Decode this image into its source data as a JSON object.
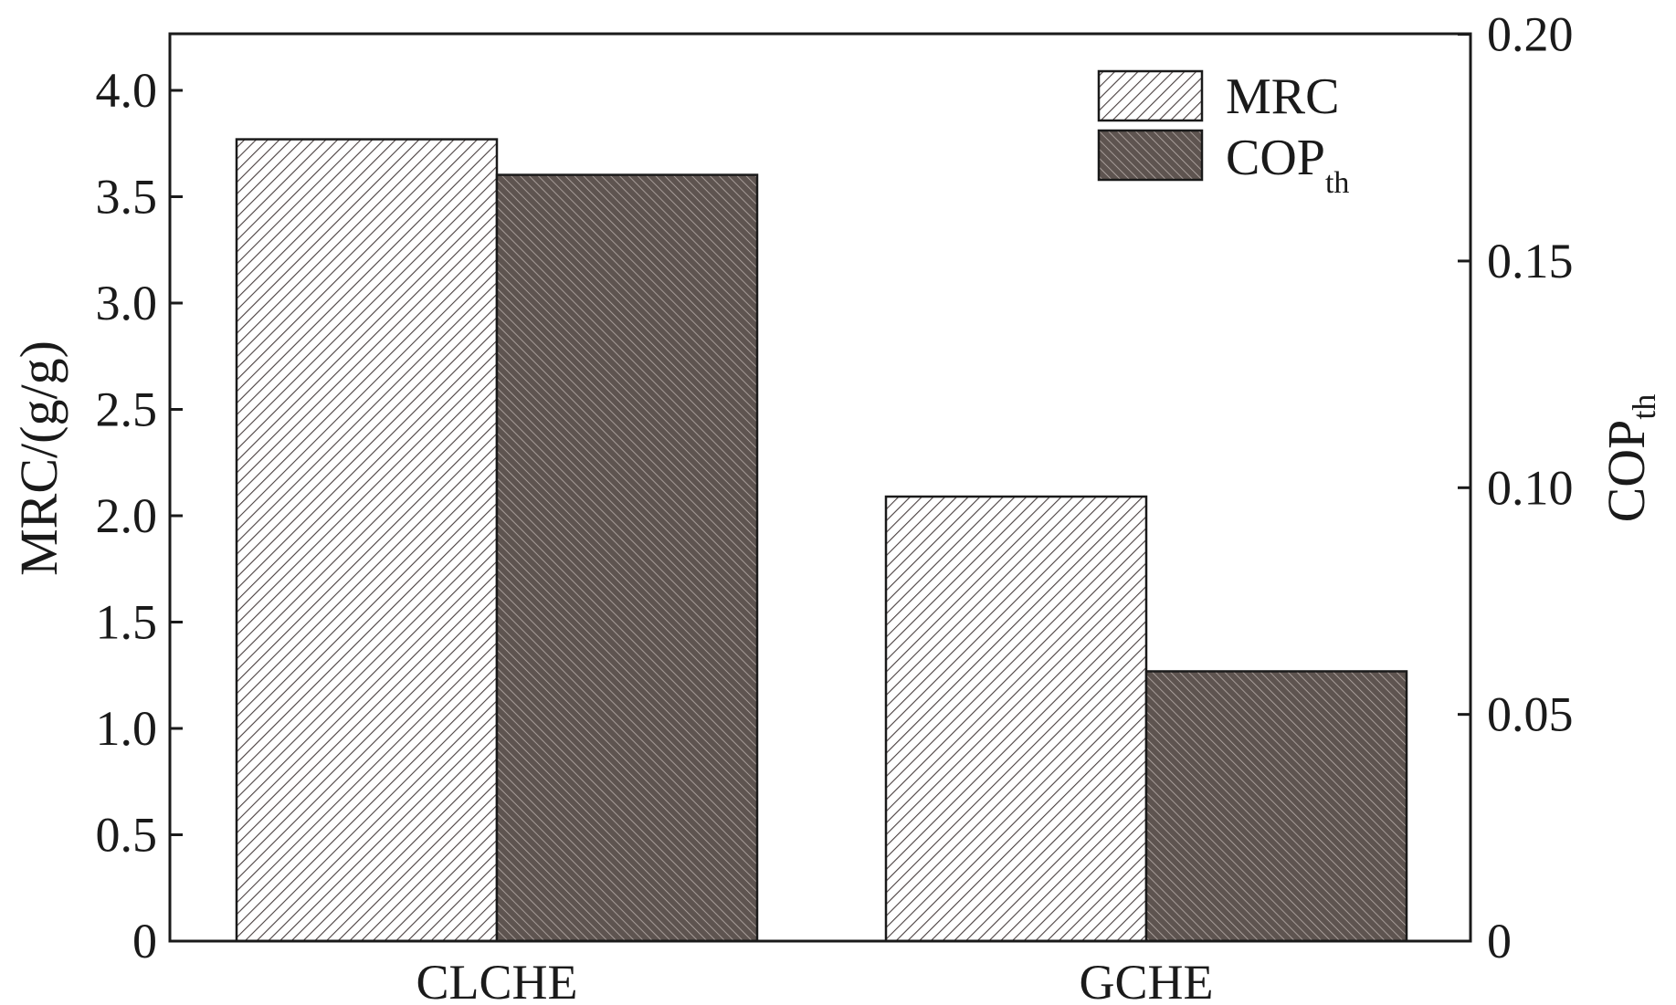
{
  "chart_data": {
    "type": "bar",
    "categories": [
      "CLCHE",
      "GCHE"
    ],
    "series": [
      {
        "name": "MRC",
        "axis": "left",
        "values": [
          3.77,
          2.09
        ]
      },
      {
        "name": "COP",
        "name_subscript": "th",
        "axis": "right",
        "values": [
          0.169,
          0.0595
        ]
      }
    ],
    "left_axis": {
      "label": "MRC/(g/g)",
      "ylim": [
        0,
        4.25
      ],
      "ticks": [
        0,
        0.5,
        1.0,
        1.5,
        2.0,
        2.5,
        3.0,
        3.5,
        4.0
      ],
      "tick_labels": [
        "0",
        "0.5",
        "1.0",
        "1.5",
        "2.0",
        "2.5",
        "3.0",
        "3.5",
        "4.0"
      ]
    },
    "right_axis": {
      "label": "COP",
      "label_subscript": "th",
      "ylim": [
        0,
        0.2
      ],
      "ticks": [
        0,
        0.05,
        0.1,
        0.15,
        0.2
      ],
      "tick_labels": [
        "0",
        "0.05",
        "0.10",
        "0.15",
        "0.20"
      ]
    },
    "legend": {
      "position": "top-right",
      "entries": [
        {
          "label": "MRC",
          "subscript": ""
        },
        {
          "label": "COP",
          "subscript": "th"
        }
      ]
    },
    "grid": false,
    "colors": {
      "axis": "#1a1a1a",
      "mrc_fill": "#ffffff",
      "mrc_hatch": "#4a4040",
      "cop_fill": "#6b605c",
      "cop_hatch": "#c8c0bc"
    }
  }
}
